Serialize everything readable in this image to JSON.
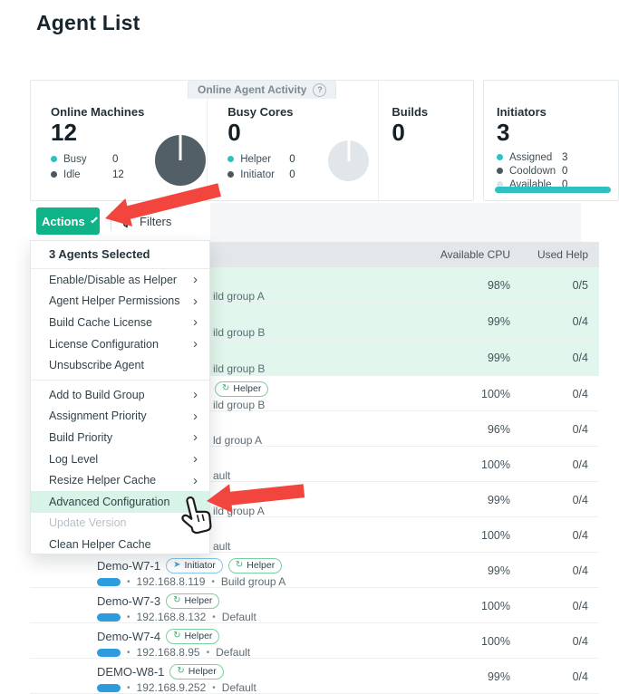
{
  "page": {
    "title": "Agent List"
  },
  "activity": {
    "tab_label": "Online Agent Activity",
    "cards": [
      {
        "title": "Online Machines",
        "value": "12",
        "donut": "dark",
        "legend": [
          {
            "label": "Busy",
            "value": "0",
            "color": "teal"
          },
          {
            "label": "Idle",
            "value": "12",
            "color": "dark"
          }
        ]
      },
      {
        "title": "Busy Cores",
        "value": "0",
        "donut": "light",
        "legend": [
          {
            "label": "Helper",
            "value": "0",
            "color": "teal"
          },
          {
            "label": "Initiator",
            "value": "0",
            "color": "dark"
          }
        ]
      },
      {
        "title": "Builds",
        "value": "0",
        "legend": []
      },
      {
        "title": "Initiators",
        "value": "3",
        "bar": true,
        "legend": [
          {
            "label": "Assigned",
            "value": "3",
            "color": "teal"
          },
          {
            "label": "Cooldown",
            "value": "0",
            "color": "dark"
          },
          {
            "label": "Available",
            "value": "0",
            "color": "lightgray"
          }
        ]
      }
    ]
  },
  "toolbar": {
    "actions_label": "Actions",
    "filters_label": "Filters"
  },
  "menu": {
    "header": "3 Agents Selected",
    "items": [
      {
        "label": "Enable/Disable as Helper",
        "chevron": true
      },
      {
        "label": "Agent Helper Permissions",
        "chevron": true
      },
      {
        "label": "Build Cache License",
        "chevron": true
      },
      {
        "label": "License Configuration",
        "chevron": true
      },
      {
        "label": "Unsubscribe Agent",
        "chevron": false,
        "divider_after": true
      },
      {
        "label": "Add to Build Group",
        "chevron": true
      },
      {
        "label": "Assignment Priority",
        "chevron": true
      },
      {
        "label": "Build Priority",
        "chevron": true
      },
      {
        "label": "Log Level",
        "chevron": true
      },
      {
        "label": "Resize Helper Cache",
        "chevron": true
      },
      {
        "label": "Advanced Configuration",
        "chevron": false,
        "highlighted": true
      },
      {
        "label": "Update Version",
        "chevron": false,
        "disabled": true
      },
      {
        "label": "Clean Helper Cache",
        "chevron": false
      }
    ]
  },
  "table": {
    "columns": {
      "cpu": "Available CPU",
      "used": "Used Help"
    },
    "rows": [
      {
        "selected": true,
        "visible_sub": "ild group A",
        "cpu": "98%",
        "used": "0/5"
      },
      {
        "selected": true,
        "visible_sub": "ild group B",
        "cpu": "99%",
        "used": "0/4"
      },
      {
        "selected": true,
        "visible_sub": "ild group B",
        "cpu": "99%",
        "used": "0/4"
      },
      {
        "selected": false,
        "badges": [
          "Helper"
        ],
        "visible_sub": "ild group B",
        "cpu": "100%",
        "used": "0/4"
      },
      {
        "selected": false,
        "visible_sub": "ld group A",
        "cpu": "96%",
        "used": "0/4"
      },
      {
        "selected": false,
        "visible_sub": "ault",
        "cpu": "100%",
        "used": "0/4"
      },
      {
        "selected": false,
        "visible_sub": "ild group A",
        "cpu": "99%",
        "used": "0/4"
      },
      {
        "selected": false,
        "visible_sub": "ault",
        "cpu": "100%",
        "used": "0/4"
      },
      {
        "selected": false,
        "name": "Demo-W7-1",
        "badges": [
          "Initiator",
          "Helper"
        ],
        "ip": "192.168.8.119",
        "group": "Build group A",
        "cpu": "99%",
        "used": "0/4"
      },
      {
        "selected": false,
        "name": "Demo-W7-3",
        "badges": [
          "Helper"
        ],
        "ip": "192.168.8.132",
        "group": "Default",
        "cpu": "100%",
        "used": "0/4"
      },
      {
        "selected": false,
        "name": "Demo-W7-4",
        "badges": [
          "Helper"
        ],
        "ip": "192.168.8.95",
        "group": "Default",
        "cpu": "100%",
        "used": "0/4"
      },
      {
        "selected": false,
        "name": "DEMO-W8-1",
        "badges": [
          "Helper"
        ],
        "ip": "192.168.9.252",
        "group": "Default",
        "cpu": "99%",
        "used": "0/4"
      }
    ]
  },
  "badges": {
    "initiator_label": "Initiator",
    "initiator_icon": "➤",
    "helper_label": "Helper",
    "helper_icon": "↻"
  },
  "colors": {
    "accent_green": "#0eb488",
    "selected_row": "#e1f6ec",
    "menu_highlight": "#d8f3e7",
    "arrow_red": "#f2453d",
    "dot_teal": "#2fc0c4",
    "dot_dark": "#4c565e",
    "dot_lightgray": "#dce3e6",
    "donut_dark": "#525f66",
    "donut_light": "#e0e6e9",
    "os_pill_blue": "#2e9cdc"
  }
}
